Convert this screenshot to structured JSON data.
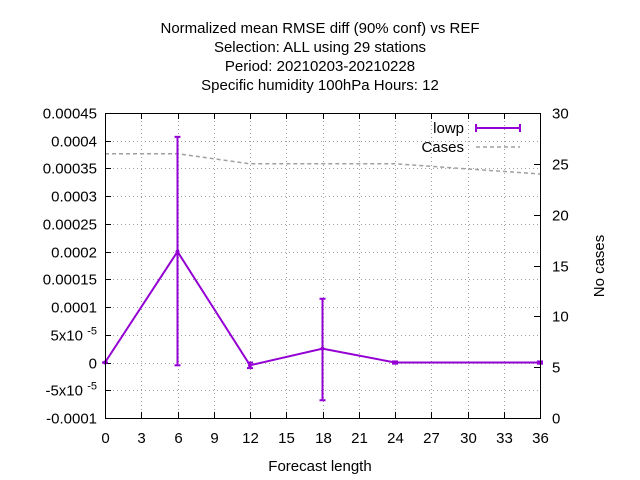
{
  "chart_data": {
    "type": "line",
    "title_lines": [
      "Normalized mean RMSE diff (90% conf) vs REF",
      "Selection: ALL using    29 stations",
      "Period: 20210203-20210228",
      "Specific humidity 100hPa   Hours:  12"
    ],
    "xlabel": "Forecast length",
    "ylabel_right": "No cases",
    "xlim": [
      0,
      36
    ],
    "ylim": [
      -0.0001,
      0.00045
    ],
    "y2lim": [
      0,
      30
    ],
    "x_ticks": [
      0,
      3,
      6,
      9,
      12,
      15,
      18,
      21,
      24,
      27,
      30,
      33,
      36
    ],
    "x_tick_labels": [
      "0",
      "3",
      "6",
      "9",
      "12",
      "15",
      "18",
      "21",
      "24",
      "27",
      "30",
      "33",
      "36"
    ],
    "y_ticks": [
      -0.0001,
      -5e-05,
      0,
      5e-05,
      0.0001,
      0.00015,
      0.0002,
      0.00025,
      0.0003,
      0.00035,
      0.0004,
      0.00045
    ],
    "y_tick_labels": [
      "-0.0001",
      "-5x10",
      "0",
      "5x10",
      "0.0001",
      "0.00015",
      "0.0002",
      "0.00025",
      "0.0003",
      "0.00035",
      "0.0004",
      "0.00045"
    ],
    "y_tick_exponent": "-5",
    "y2_ticks": [
      0,
      5,
      10,
      15,
      20,
      25,
      30
    ],
    "y2_tick_labels": [
      "0",
      "5",
      "10",
      "15",
      "20",
      "25",
      "30"
    ],
    "grid": true,
    "legend_position": "top-right",
    "series": [
      {
        "name": "lowp",
        "color": "#9400d3",
        "style": "line-errorbars",
        "axis": "y",
        "x": [
          0,
          6,
          12,
          18,
          24,
          36
        ],
        "y": [
          0.0,
          0.0002,
          -5e-06,
          2.5e-05,
          0.0,
          0.0
        ],
        "y_low": [
          0.0,
          -5e-06,
          -1e-05,
          -6.8e-05,
          -2e-06,
          -2e-06
        ],
        "y_high": [
          0.0,
          0.000407,
          0.0,
          0.000115,
          2e-06,
          2e-06
        ]
      },
      {
        "name": "Cases",
        "color": "#a0a0a0",
        "style": "dashed",
        "axis": "y2",
        "x": [
          0,
          6,
          12,
          18,
          24,
          36
        ],
        "y": [
          26,
          26,
          25,
          25,
          25,
          24
        ]
      }
    ]
  }
}
